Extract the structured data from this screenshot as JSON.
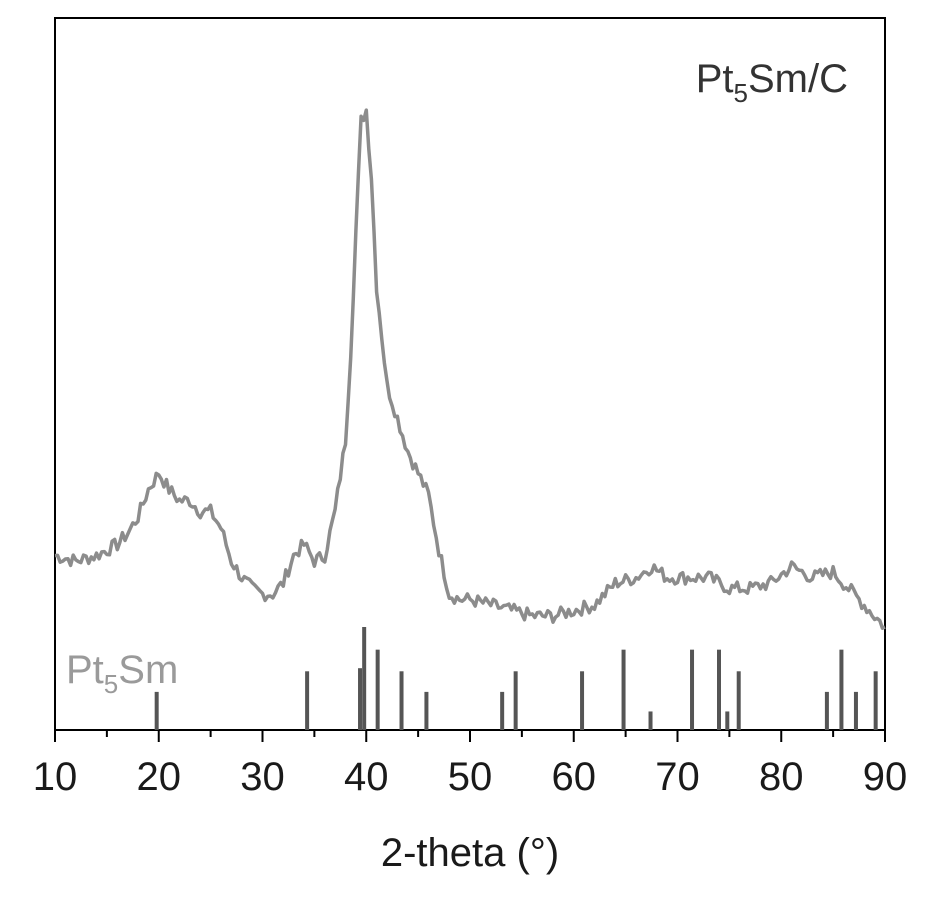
{
  "colors": {
    "pattern": "#8c8c8c",
    "reference_bars": "#555555",
    "reference_label": "#9a9a9a",
    "frame": "#000000"
  },
  "chart_data": {
    "type": "line",
    "title": "",
    "xlabel": "2-theta (°)",
    "ylabel": "",
    "xlim": [
      10,
      90
    ],
    "x_ticks": [
      "10",
      "20",
      "30",
      "40",
      "50",
      "60",
      "70",
      "80",
      "90"
    ],
    "y_ticks_shown": false,
    "grid": false,
    "series": [
      {
        "name": "Pt₅Sm/C",
        "label_base": "Pt",
        "label_sub": "5",
        "label_rest": "Sm/C",
        "x": [
          10,
          12,
          14,
          16,
          17,
          18,
          19,
          20,
          21,
          22,
          23,
          24,
          25,
          26,
          27,
          28,
          29,
          30,
          31,
          32,
          33,
          34,
          35,
          36,
          37,
          38,
          38.5,
          39,
          39.5,
          40,
          40.5,
          41,
          42,
          43,
          44,
          45,
          46,
          47,
          48,
          49,
          50,
          52,
          54,
          56,
          58,
          60,
          62,
          64,
          66,
          67.5,
          69,
          71,
          73,
          75,
          77,
          79,
          81,
          83,
          85,
          87,
          89,
          90
        ],
        "y": [
          0.19,
          0.18,
          0.19,
          0.21,
          0.23,
          0.26,
          0.31,
          0.34,
          0.31,
          0.29,
          0.29,
          0.27,
          0.27,
          0.24,
          0.18,
          0.15,
          0.13,
          0.12,
          0.12,
          0.14,
          0.19,
          0.21,
          0.18,
          0.19,
          0.27,
          0.4,
          0.56,
          0.78,
          0.98,
          1.0,
          0.88,
          0.68,
          0.5,
          0.44,
          0.38,
          0.34,
          0.3,
          0.2,
          0.12,
          0.11,
          0.11,
          0.1,
          0.09,
          0.08,
          0.08,
          0.09,
          0.1,
          0.14,
          0.15,
          0.17,
          0.15,
          0.15,
          0.15,
          0.13,
          0.13,
          0.14,
          0.17,
          0.15,
          0.16,
          0.12,
          0.08,
          0.06
        ]
      }
    ],
    "reference": {
      "name": "Pt₅Sm",
      "label_base": "Pt",
      "label_sub": "5",
      "label_rest": "Sm",
      "peaks": [
        {
          "x": 19.8,
          "y": 0.37
        },
        {
          "x": 34.3,
          "y": 0.57
        },
        {
          "x": 39.4,
          "y": 0.6
        },
        {
          "x": 39.8,
          "y": 1.0
        },
        {
          "x": 41.1,
          "y": 0.78
        },
        {
          "x": 43.4,
          "y": 0.57
        },
        {
          "x": 45.8,
          "y": 0.37
        },
        {
          "x": 53.1,
          "y": 0.37
        },
        {
          "x": 54.4,
          "y": 0.57
        },
        {
          "x": 60.8,
          "y": 0.57
        },
        {
          "x": 64.8,
          "y": 0.78
        },
        {
          "x": 67.4,
          "y": 0.18
        },
        {
          "x": 71.4,
          "y": 0.78
        },
        {
          "x": 74.0,
          "y": 0.78
        },
        {
          "x": 74.8,
          "y": 0.18
        },
        {
          "x": 75.9,
          "y": 0.57
        },
        {
          "x": 84.4,
          "y": 0.37
        },
        {
          "x": 85.8,
          "y": 0.78
        },
        {
          "x": 87.2,
          "y": 0.37
        },
        {
          "x": 89.1,
          "y": 0.57
        }
      ]
    }
  }
}
